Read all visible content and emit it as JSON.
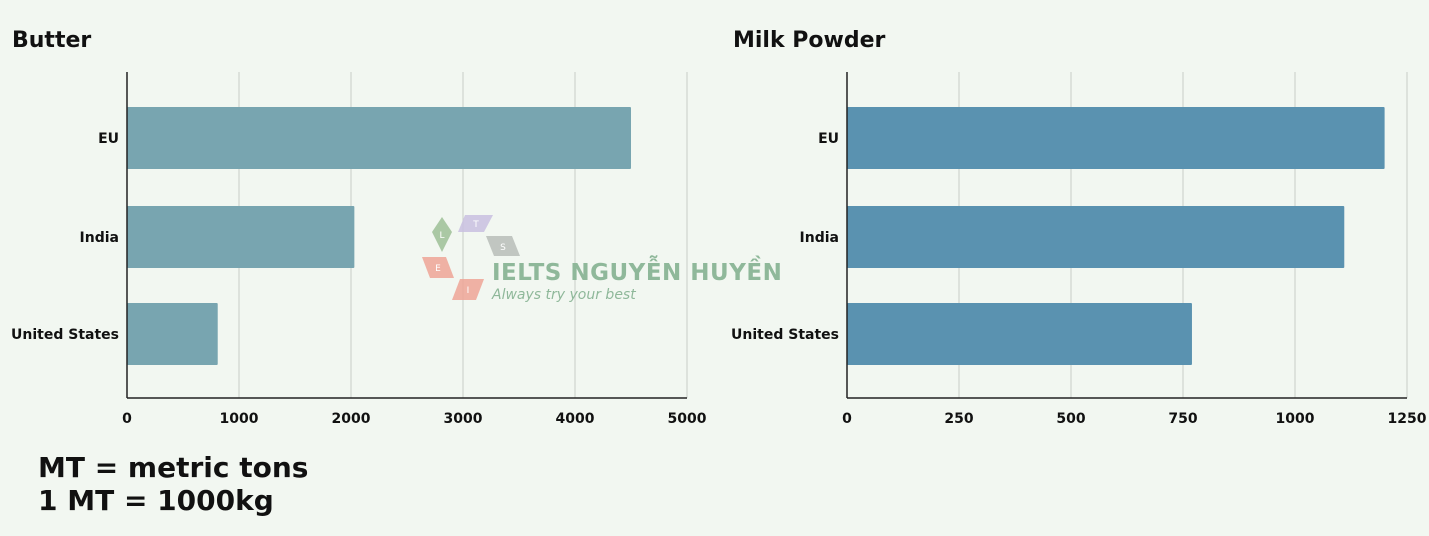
{
  "colors": {
    "background": "#f2f7f1",
    "butter_bar": "#78a5b0",
    "milk_bar": "#5a92b0",
    "grid": "#c8ccc8",
    "axis": "#222222"
  },
  "chart_data": [
    {
      "type": "bar",
      "orientation": "horizontal",
      "title": "Butter",
      "categories": [
        "EU",
        "India",
        "United States"
      ],
      "values": [
        4500,
        2030,
        810
      ],
      "xlim": [
        0,
        5000
      ],
      "xticks": [
        "0",
        "1000",
        "2000",
        "3000",
        "4000",
        "5000"
      ],
      "grid": true
    },
    {
      "type": "bar",
      "orientation": "horizontal",
      "title": "Milk Powder",
      "categories": [
        "EU",
        "India",
        "United States"
      ],
      "values": [
        1200,
        1110,
        770
      ],
      "xlim": [
        0,
        1250
      ],
      "xticks": [
        "0",
        "250",
        "500",
        "750",
        "1000",
        "1250"
      ],
      "grid": true
    }
  ],
  "footnotes": [
    "MT = metric tons",
    "1 MT = 1000kg"
  ],
  "watermark": {
    "logo_letters": [
      "L",
      "T",
      "S",
      "E",
      "I"
    ],
    "brand": "IELTS NGUYỄN HUYỀN",
    "tagline": "Always try your best"
  }
}
